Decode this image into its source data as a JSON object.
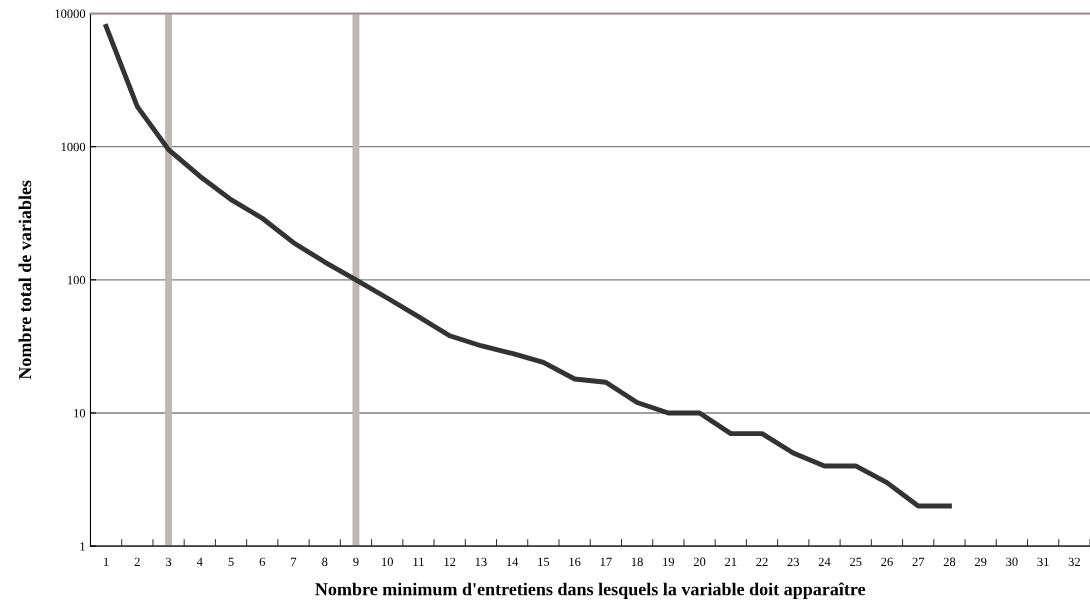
{
  "chart_data": {
    "type": "line",
    "xlabel": "Nombre minimum d'entretiens dans lesquels la variable doit apparaître",
    "ylabel": "Nombre total de variables",
    "categories": [
      "1",
      "2",
      "3",
      "4",
      "5",
      "6",
      "7",
      "8",
      "9",
      "10",
      "11",
      "12",
      "13",
      "14",
      "15",
      "16",
      "17",
      "18",
      "19",
      "20",
      "21",
      "22",
      "23",
      "24",
      "25",
      "26",
      "27",
      "28",
      "29",
      "30",
      "31",
      "32"
    ],
    "series": [
      {
        "color": "#333333",
        "values": [
          8000,
          2000,
          950,
          600,
          400,
          290,
          190,
          136,
          100,
          73,
          53,
          38,
          32,
          28,
          24,
          18,
          17,
          12,
          10,
          10,
          7,
          7,
          5,
          4,
          4,
          3,
          2,
          2,
          null,
          null,
          null,
          null
        ]
      }
    ],
    "log": true,
    "ylim": [
      1,
      10000
    ],
    "yticks": [
      1,
      10,
      100,
      1000,
      10000
    ],
    "grid": "y",
    "marker": "none",
    "line_style": "solid",
    "ref_lines": [
      {
        "axis": "x",
        "value": "3",
        "color": "#c0b6b4"
      },
      {
        "axis": "x",
        "value": "9",
        "color": "#c0b6b4"
      }
    ]
  }
}
